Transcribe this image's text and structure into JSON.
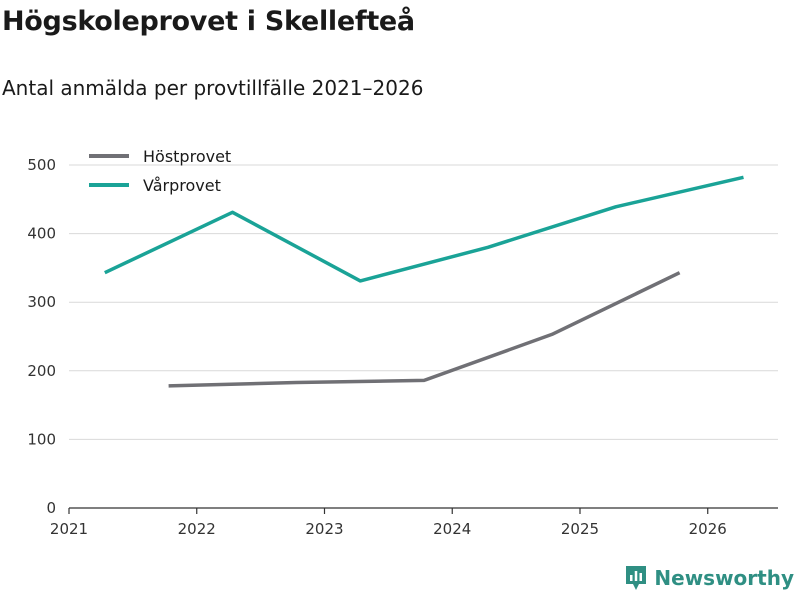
{
  "header": {
    "title": "Högskoleprovet i Skellefteå",
    "subtitle": "Antal anmälda per provtillfälle 2021–2026"
  },
  "brand": {
    "name": "Newsworthy",
    "color": "#2f8f83"
  },
  "chart_data": {
    "type": "line",
    "title": "Högskoleprovet i Skellefteå",
    "subtitle": "Antal anmälda per provtillfälle 2021–2026",
    "xlabel": "",
    "ylabel": "",
    "xlim": [
      2021,
      2026.55
    ],
    "ylim": [
      0,
      500
    ],
    "x_ticks": [
      2021,
      2022,
      2023,
      2024,
      2025,
      2026
    ],
    "x_tick_labels": [
      "2021",
      "2022",
      "2023",
      "2024",
      "2025",
      "2026"
    ],
    "y_ticks": [
      0,
      100,
      200,
      300,
      400,
      500
    ],
    "y_tick_labels": [
      "0",
      "100",
      "200",
      "300",
      "400",
      "500"
    ],
    "grid": true,
    "legend_position": "top-left",
    "series": [
      {
        "name": "Höstprovet",
        "color": "#707075",
        "x": [
          2021.78,
          2022.78,
          2023.78,
          2024.78,
          2025.78
        ],
        "values": [
          178,
          183,
          186,
          253,
          343
        ]
      },
      {
        "name": "Vårprovet",
        "color": "#1aa397",
        "x": [
          2021.28,
          2022.28,
          2023.28,
          2024.28,
          2025.28,
          2026.28
        ],
        "values": [
          343,
          431,
          331,
          380,
          439,
          482
        ]
      }
    ]
  }
}
